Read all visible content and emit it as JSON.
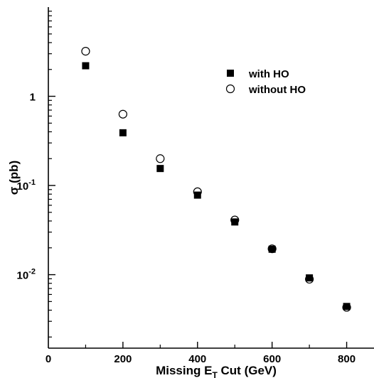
{
  "chart_data": {
    "type": "scatter",
    "xlabel": {
      "main": "Missing E",
      "sub": "T",
      "rest": " Cut   (GeV)"
    },
    "ylabel": "σ (pb)",
    "xlim": [
      0,
      900
    ],
    "ylim": [
      0.0015,
      10
    ],
    "y_scale": "log",
    "grid": false,
    "legend_position": "top-right",
    "x_ticks": [
      {
        "value": 0,
        "label": "0"
      },
      {
        "value": 200,
        "label": "200"
      },
      {
        "value": 400,
        "label": "400"
      },
      {
        "value": 600,
        "label": "600"
      },
      {
        "value": 800,
        "label": "800"
      }
    ],
    "y_ticks": [
      {
        "value": 1,
        "base": "1",
        "exp": ""
      },
      {
        "value": 0.1,
        "base": "10",
        "exp": "-1"
      },
      {
        "value": 0.01,
        "base": "10",
        "exp": "-2"
      }
    ],
    "series": [
      {
        "name": "with HO",
        "marker": "filled-square",
        "x": [
          100,
          200,
          300,
          400,
          500,
          600,
          700,
          800
        ],
        "y": [
          2.2,
          0.39,
          0.155,
          0.078,
          0.039,
          0.0193,
          0.0092,
          0.0044
        ]
      },
      {
        "name": "without HO",
        "marker": "open-circle",
        "x": [
          100,
          200,
          300,
          400,
          500,
          600,
          700,
          800
        ],
        "y": [
          3.2,
          0.63,
          0.2,
          0.085,
          0.041,
          0.0195,
          0.0089,
          0.0043
        ]
      }
    ]
  }
}
